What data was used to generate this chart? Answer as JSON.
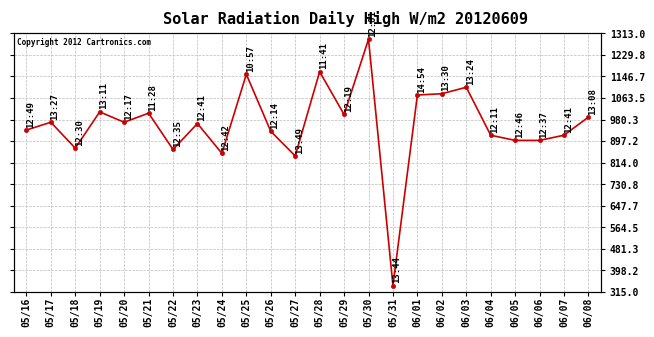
{
  "title": "Solar Radiation Daily High W/m2 20120609",
  "copyright": "Copyright 2012 Cartronics.com",
  "x_labels": [
    "05/16",
    "05/17",
    "05/18",
    "05/19",
    "05/20",
    "05/21",
    "05/22",
    "05/23",
    "05/24",
    "05/25",
    "05/26",
    "05/27",
    "05/28",
    "05/29",
    "05/30",
    "05/31",
    "06/01",
    "06/02",
    "06/03",
    "06/04",
    "06/05",
    "06/06",
    "06/07",
    "06/08"
  ],
  "values": [
    940,
    970,
    870,
    1010,
    970,
    1005,
    865,
    965,
    850,
    1155,
    935,
    840,
    1165,
    1000,
    1290,
    340,
    1075,
    1080,
    1105,
    920,
    900,
    900,
    920,
    990
  ],
  "time_labels": [
    "12:49",
    "13:27",
    "12:30",
    "13:11",
    "12:17",
    "11:28",
    "12:35",
    "12:41",
    "12:42",
    "10:57",
    "12:14",
    "13:49",
    "11:41",
    "12:19",
    "12:01",
    "13:44",
    "14:54",
    "13:30",
    "13:24",
    "12:11",
    "12:46",
    "12:37",
    "12:41",
    "13:08"
  ],
  "y_min": 315.0,
  "y_max": 1313.0,
  "y_ticks": [
    315.0,
    398.2,
    481.3,
    564.5,
    647.7,
    730.8,
    814.0,
    897.2,
    980.3,
    1063.5,
    1146.7,
    1229.8,
    1313.0
  ],
  "line_color": "#cc0000",
  "marker_color": "#cc0000",
  "bg_color": "#ffffff",
  "grid_color": "#bbbbbb",
  "title_fontsize": 11,
  "tick_fontsize": 7,
  "annotation_fontsize": 6.5
}
